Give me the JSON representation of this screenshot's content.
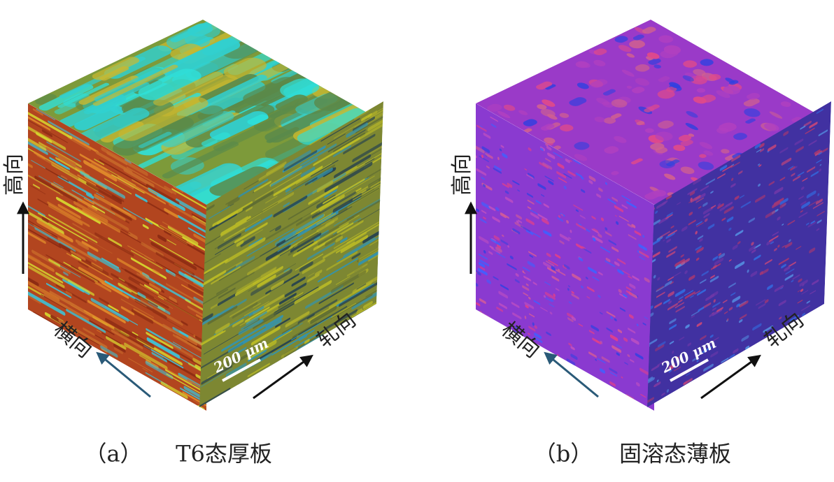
{
  "panels": [
    {
      "label": "（a）",
      "caption": "T6态厚板",
      "height_dir": "高向",
      "transverse_dir": "横向",
      "rolling_dir": "轧向",
      "scale_bar": "200 μm"
    },
    {
      "label": "（b）",
      "caption": "固溶态薄板",
      "height_dir": "高向",
      "transverse_dir": "横向",
      "rolling_dir": "轧向",
      "scale_bar": "200 μm"
    }
  ]
}
